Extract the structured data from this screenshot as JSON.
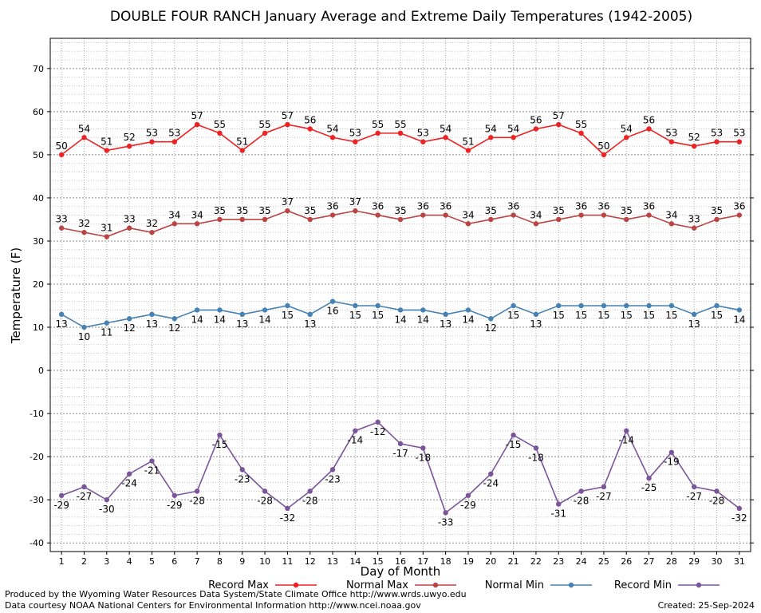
{
  "chart_data": {
    "type": "line",
    "title": "DOUBLE FOUR RANCH January Average and Extreme Daily Temperatures (1942-2005)",
    "xlabel": "Day of Month",
    "ylabel": "Temperature (F)",
    "x": [
      1,
      2,
      3,
      4,
      5,
      6,
      7,
      8,
      9,
      10,
      11,
      12,
      13,
      14,
      15,
      16,
      17,
      18,
      19,
      20,
      21,
      22,
      23,
      24,
      25,
      26,
      27,
      28,
      29,
      30,
      31
    ],
    "xlim": [
      0.5,
      31.5
    ],
    "ylim": [
      -42,
      77
    ],
    "yticks": [
      -40,
      -30,
      -20,
      -10,
      0,
      10,
      20,
      30,
      40,
      50,
      60,
      70
    ],
    "grid": true,
    "legend_position": "bottom",
    "series": [
      {
        "name": "Record Max",
        "color": "#ee2222",
        "label_pos": "above",
        "values": [
          50,
          54,
          51,
          52,
          53,
          53,
          57,
          55,
          51,
          55,
          57,
          56,
          54,
          53,
          55,
          55,
          53,
          54,
          51,
          54,
          54,
          56,
          57,
          55,
          50,
          54,
          56,
          53,
          52,
          53,
          53
        ]
      },
      {
        "name": "Normal Max",
        "color": "#bb4444",
        "label_pos": "above",
        "values": [
          33,
          32,
          31,
          33,
          32,
          34,
          34,
          35,
          35,
          35,
          37,
          35,
          36,
          37,
          36,
          35,
          36,
          36,
          34,
          35,
          36,
          34,
          35,
          36,
          36,
          35,
          36,
          34,
          33,
          35,
          36
        ]
      },
      {
        "name": "Normal Min",
        "color": "#4682b4",
        "label_pos": "below",
        "values": [
          13,
          10,
          11,
          12,
          13,
          12,
          14,
          14,
          13,
          14,
          15,
          13,
          16,
          15,
          15,
          14,
          14,
          13,
          14,
          12,
          15,
          13,
          15,
          15,
          15,
          15,
          15,
          15,
          13,
          15,
          14
        ]
      },
      {
        "name": "Record Min",
        "color": "#7b559b",
        "label_pos": "below",
        "values": [
          -29,
          -27,
          -30,
          -24,
          -21,
          -29,
          -28,
          -15,
          -23,
          -28,
          -32,
          -28,
          -23,
          -14,
          -12,
          -17,
          -18,
          -33,
          -29,
          -24,
          -15,
          -18,
          -31,
          -28,
          -27,
          -14,
          -25,
          -19,
          -27,
          -28,
          -32
        ]
      }
    ]
  },
  "footer": {
    "line1": "Produced by the Wyoming Water Resources Data System/State Climate Office http://www.wrds.uwyo.edu",
    "line2": "Data courtesy NOAA National Centers for Environmental Information http://www.ncei.noaa.gov",
    "created": "Created:  25-Sep-2024"
  }
}
